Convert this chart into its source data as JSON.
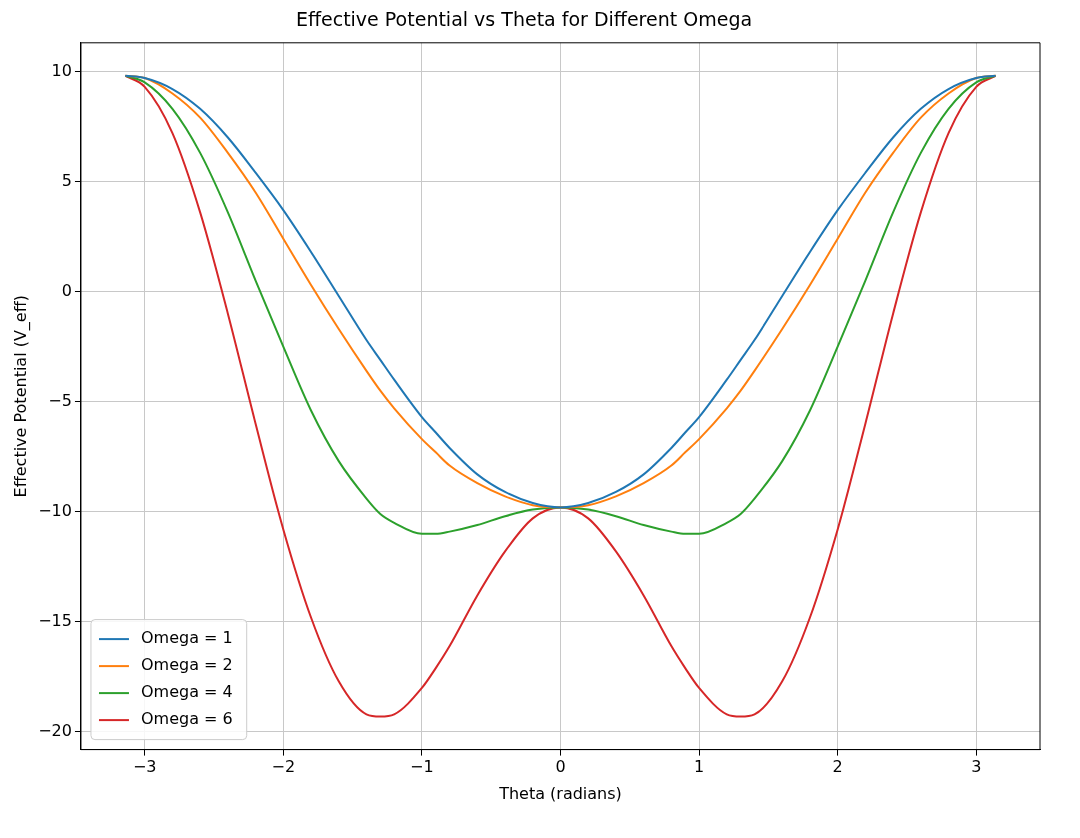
{
  "chart_data": {
    "type": "line",
    "title": "Effective Potential vs Theta for Different Omega",
    "xlabel": "Theta (radians)",
    "ylabel": "Effective Potential (V_eff)",
    "x": [
      -3.14,
      -3,
      -2.8,
      -2.6,
      -2.4,
      -2.2,
      -2,
      -1.8,
      -1.6,
      -1.4,
      -1.3,
      -1.2,
      -1,
      -0.9,
      -0.8,
      -0.6,
      -0.4,
      -0.2,
      0,
      0.2,
      0.4,
      0.6,
      0.8,
      0.9,
      1,
      1.2,
      1.3,
      1.4,
      1.6,
      1.8,
      2,
      2.2,
      2.4,
      2.6,
      2.8,
      3,
      3.14
    ],
    "series": [
      {
        "name": "Omega = 1",
        "color": "#1f77b4",
        "values": [
          9.8,
          9.7,
          9.2,
          8.3,
          7.0,
          5.4,
          3.7,
          1.8,
          -0.2,
          -2.2,
          -3.1,
          -4.0,
          -5.7,
          -6.4,
          -7.1,
          -8.3,
          -9.1,
          -9.6,
          -9.8,
          -9.6,
          -9.1,
          -8.3,
          -7.1,
          -6.4,
          -5.7,
          -4.0,
          -3.1,
          -2.2,
          -0.2,
          1.8,
          3.7,
          5.4,
          7.0,
          8.3,
          9.2,
          9.7,
          9.8
        ]
      },
      {
        "name": "Omega = 2",
        "color": "#ff7f0e",
        "values": [
          9.8,
          9.7,
          9.0,
          7.9,
          6.3,
          4.5,
          2.4,
          0.3,
          -1.7,
          -3.6,
          -4.5,
          -5.3,
          -6.7,
          -7.3,
          -7.9,
          -8.7,
          -9.3,
          -9.7,
          -9.8,
          -9.7,
          -9.3,
          -8.7,
          -7.9,
          -7.3,
          -6.7,
          -5.3,
          -4.5,
          -3.6,
          -1.7,
          0.3,
          2.4,
          4.5,
          6.3,
          7.9,
          9.0,
          9.7,
          9.8
        ]
      },
      {
        "name": "Omega = 4",
        "color": "#2ca02c",
        "values": [
          9.8,
          9.5,
          8.3,
          6.3,
          3.6,
          0.5,
          -2.5,
          -5.4,
          -7.7,
          -9.4,
          -10.1,
          -10.5,
          -11.0,
          -11.0,
          -10.9,
          -10.6,
          -10.2,
          -9.9,
          -9.8,
          -9.9,
          -10.2,
          -10.6,
          -10.9,
          -11.0,
          -11.0,
          -10.5,
          -10.1,
          -9.4,
          -7.7,
          -5.4,
          -2.5,
          0.5,
          3.6,
          6.3,
          8.3,
          9.5,
          9.8
        ]
      },
      {
        "name": "Omega = 6",
        "color": "#d62728",
        "values": [
          9.8,
          9.3,
          7.2,
          3.6,
          -1.0,
          -6.0,
          -10.8,
          -14.8,
          -17.7,
          -19.2,
          -19.3,
          -19.2,
          -18.0,
          -17.1,
          -16.1,
          -13.8,
          -11.8,
          -10.3,
          -9.8,
          -10.3,
          -11.8,
          -13.8,
          -16.1,
          -17.1,
          -18.0,
          -19.2,
          -19.3,
          -19.2,
          -17.7,
          -14.8,
          -10.8,
          -6.0,
          -1.0,
          3.6,
          7.2,
          9.3,
          9.8
        ]
      }
    ],
    "xlim": [
      -3.46,
      3.46
    ],
    "ylim": [
      -20.8,
      11.3
    ],
    "xticks": [
      -3,
      -2,
      -1,
      0,
      1,
      2,
      3
    ],
    "yticks": [
      -20,
      -15,
      -10,
      -5,
      0,
      5,
      10
    ],
    "grid": true,
    "legend": "bottom left",
    "marker": "none",
    "line_style": "solid"
  }
}
